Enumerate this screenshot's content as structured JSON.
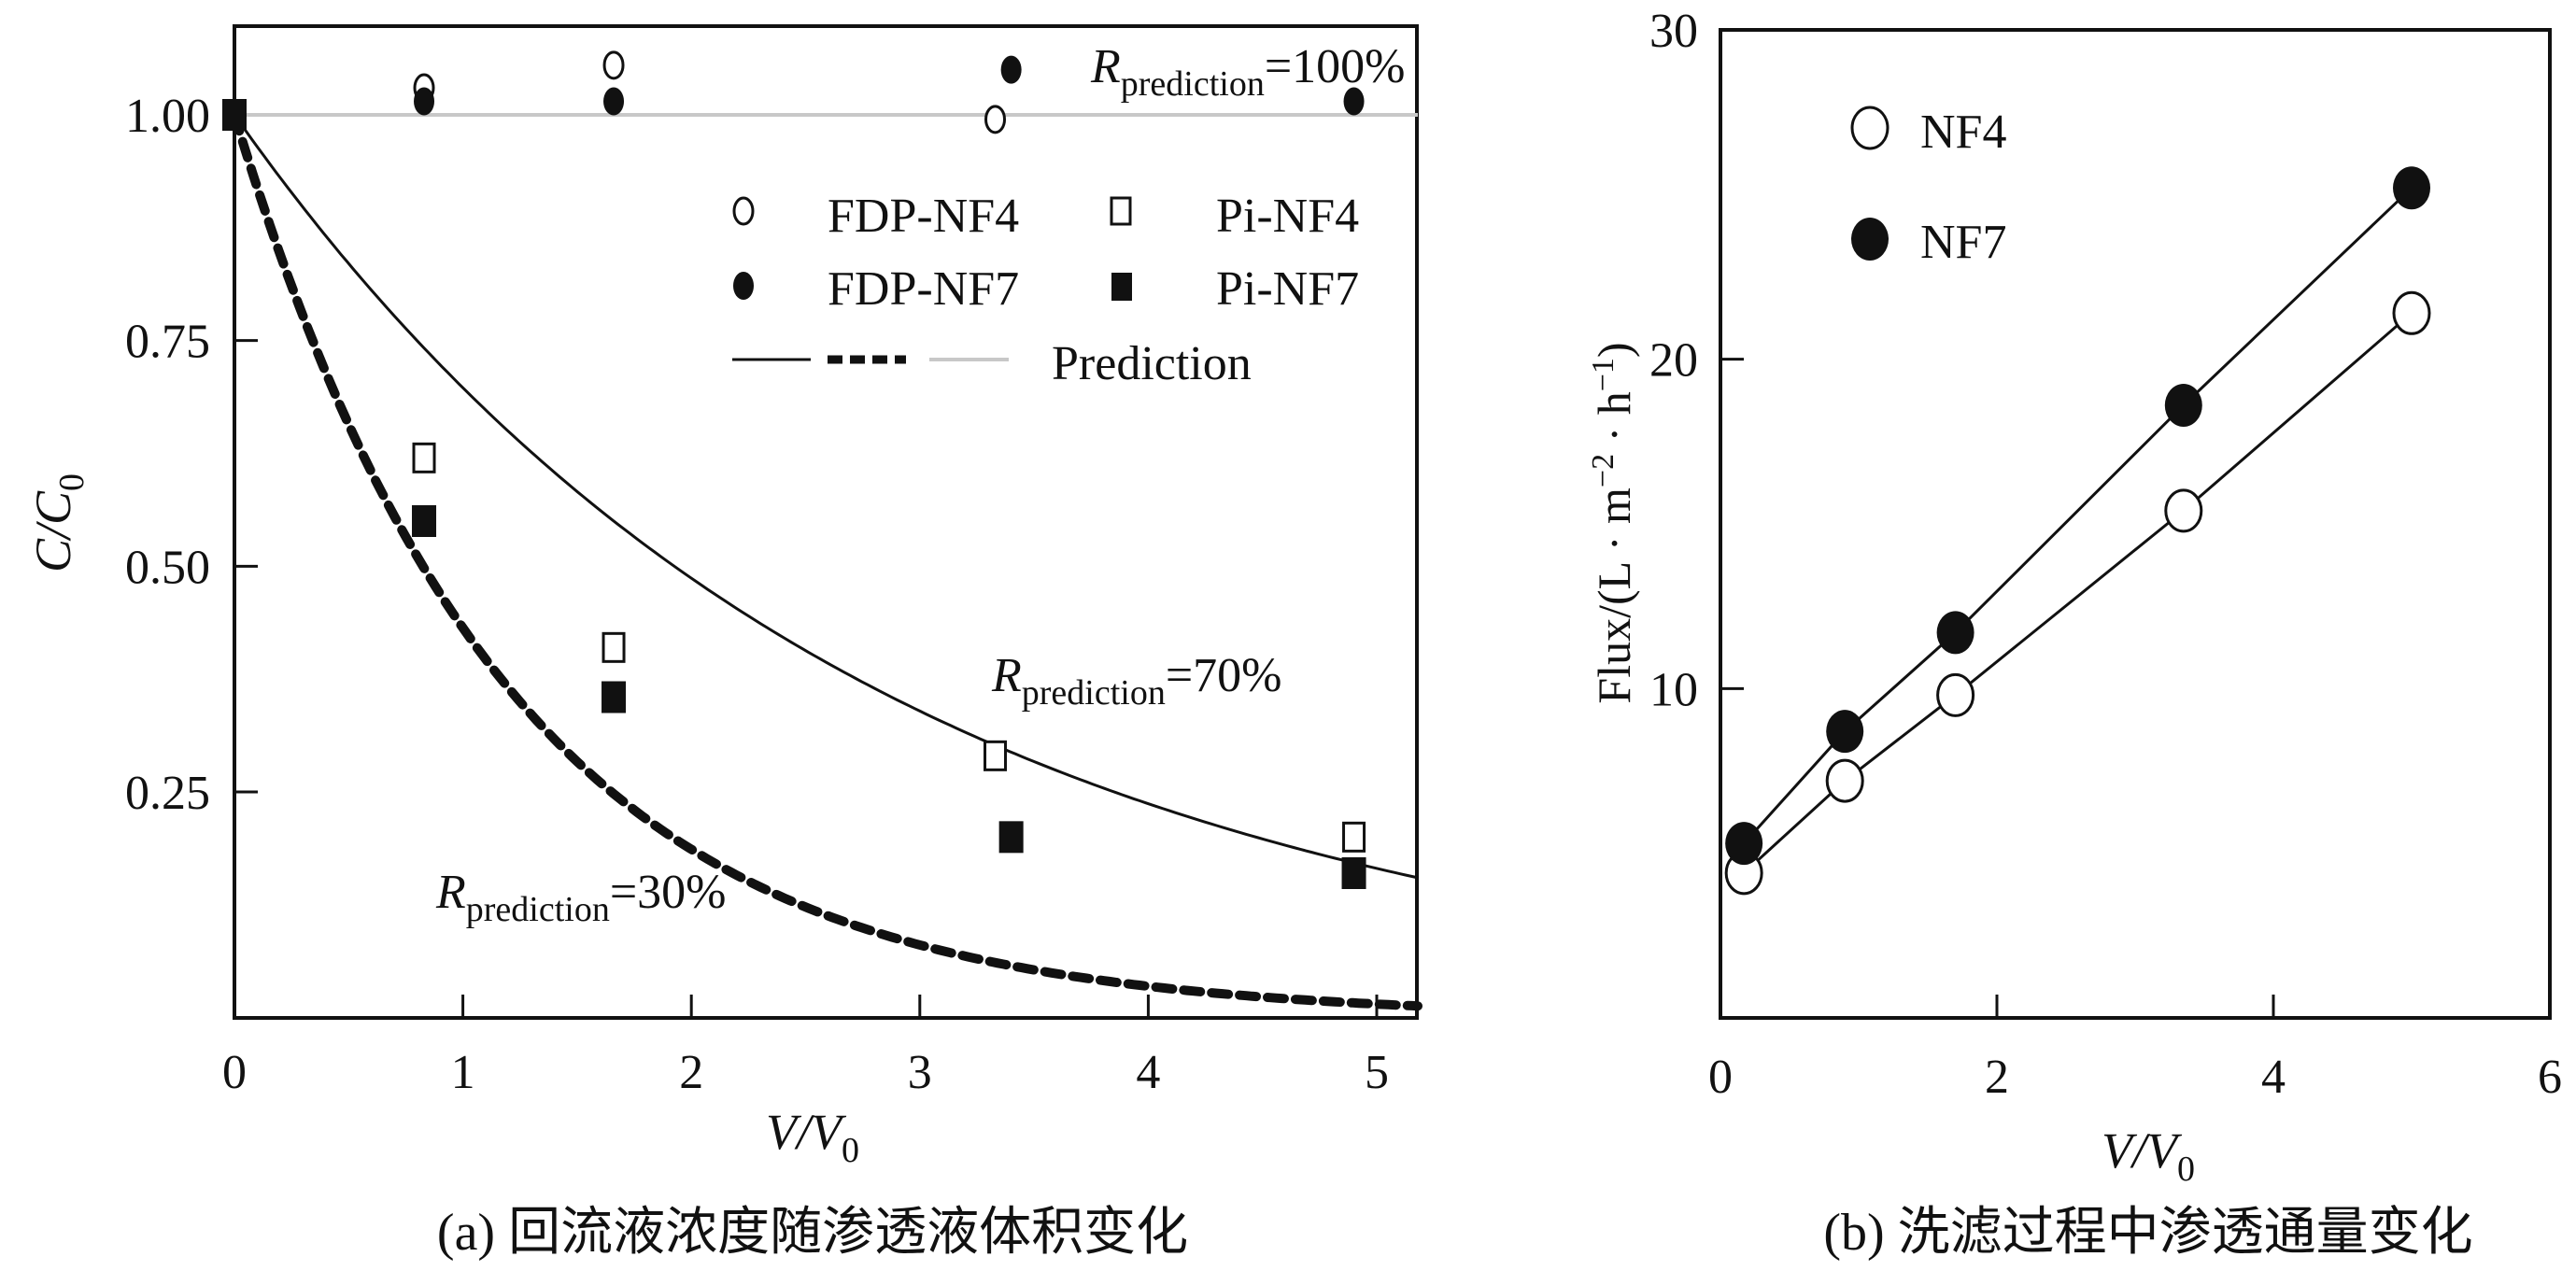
{
  "chart_data": [
    {
      "type": "scatter",
      "panel": "a",
      "caption": "(a) 回流液浓度随渗透液体积变化",
      "xlabel": "V/V0",
      "xlabel_main": "V/V",
      "xlabel_sub": "0",
      "ylabel": "C/C0",
      "ylabel_main": "C/C",
      "ylabel_sub": "0",
      "xlim": [
        0,
        5.18
      ],
      "ylim": [
        0,
        1.1
      ],
      "xticks": [
        0,
        1,
        2,
        3,
        4,
        5
      ],
      "xtick_labels": [
        "0",
        "1",
        "2",
        "3",
        "4",
        "5"
      ],
      "yticks": [
        0.25,
        0.5,
        0.75,
        1.0
      ],
      "ytick_labels": [
        "0.25",
        "0.50",
        "0.75",
        "1.00"
      ],
      "grid": false,
      "legend_position": "top-right",
      "series": [
        {
          "name": "FDP-NF4",
          "marker": "open-circle",
          "x": [
            0.83,
            1.66,
            3.33
          ],
          "y": [
            1.03,
            1.055,
            0.995
          ]
        },
        {
          "name": "FDP-NF7",
          "marker": "filled-circle",
          "x": [
            0.83,
            1.66,
            3.4,
            4.9
          ],
          "y": [
            1.015,
            1.015,
            1.05,
            1.015
          ]
        },
        {
          "name": "Pi-NF4",
          "marker": "open-square",
          "x": [
            0.83,
            1.66,
            3.33,
            4.9
          ],
          "y": [
            0.62,
            0.41,
            0.29,
            0.2
          ]
        },
        {
          "name": "Pi-NF7",
          "marker": "filled-square",
          "x": [
            0.0,
            0.83,
            1.66,
            3.4,
            4.9
          ],
          "y": [
            1.0,
            0.55,
            0.355,
            0.2,
            0.16
          ]
        }
      ],
      "prediction_lines": [
        {
          "name": "R=70%",
          "style": "solid",
          "rejection": 0.7
        },
        {
          "name": "R=30%",
          "style": "dashed-bold",
          "rejection": 0.3
        },
        {
          "name": "R=100%",
          "style": "gray",
          "rejection": 1.0
        }
      ],
      "legend": {
        "entries": [
          "FDP-NF4",
          "Pi-NF4",
          "FDP-NF7",
          "Pi-NF7"
        ],
        "prediction_label": "Prediction"
      },
      "annotations": [
        {
          "R": "R",
          "sub": "prediction",
          "value": "=100%"
        },
        {
          "R": "R",
          "sub": "prediction",
          "value": "=70%"
        },
        {
          "R": "R",
          "sub": "prediction",
          "value": "=30%"
        }
      ]
    },
    {
      "type": "line",
      "panel": "b",
      "caption": "(b) 洗滤过程中渗透通量变化",
      "xlabel": "V/V0",
      "xlabel_main": "V/V",
      "xlabel_sub": "0",
      "ylabel": "Flux/(L · m−2 · h−1)",
      "ylabel_parts": [
        "Flux/(L · m",
        "−2",
        " · h",
        "−1",
        ")"
      ],
      "xlim": [
        0,
        6
      ],
      "ylim": [
        0,
        30
      ],
      "xticks": [
        0,
        2,
        4,
        6
      ],
      "xtick_labels": [
        "0",
        "2",
        "4",
        "6"
      ],
      "yticks": [
        10,
        20,
        30
      ],
      "ytick_labels": [
        "10",
        "20",
        "30"
      ],
      "grid": false,
      "legend_position": "top-left",
      "series": [
        {
          "name": "NF4",
          "marker": "open-circle",
          "x": [
            0.17,
            0.9,
            1.7,
            3.35,
            5.0
          ],
          "y": [
            4.4,
            7.2,
            9.8,
            15.4,
            21.4
          ]
        },
        {
          "name": "NF7",
          "marker": "filled-circle",
          "x": [
            0.17,
            0.9,
            1.7,
            3.35,
            5.0
          ],
          "y": [
            5.3,
            8.7,
            11.7,
            18.6,
            25.2
          ]
        }
      ]
    }
  ]
}
